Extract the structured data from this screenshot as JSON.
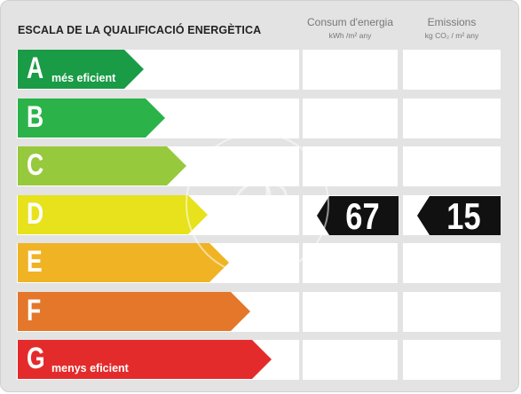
{
  "title": "ESCALA DE LA QUALIFICACIÓ ENERGÈTICA",
  "columns": {
    "consumption": {
      "label": "Consum d'energia",
      "unit": "kWh /m² any"
    },
    "emissions": {
      "label": "Emissions",
      "unit": "kg CO₂ / m² any"
    }
  },
  "ratings": [
    {
      "letter": "A",
      "sublabel": "més eficient",
      "color": "#1a9b46"
    },
    {
      "letter": "B",
      "sublabel": "",
      "color": "#2bb34a"
    },
    {
      "letter": "C",
      "sublabel": "",
      "color": "#97c93d"
    },
    {
      "letter": "D",
      "sublabel": "",
      "color": "#e7e21b"
    },
    {
      "letter": "E",
      "sublabel": "",
      "color": "#f0b323"
    },
    {
      "letter": "F",
      "sublabel": "",
      "color": "#e4772a"
    },
    {
      "letter": "G",
      "sublabel": "menys eficient",
      "color": "#e42b2b"
    }
  ],
  "result": {
    "rating": "D",
    "consumption": "67",
    "emissions": "15"
  }
}
